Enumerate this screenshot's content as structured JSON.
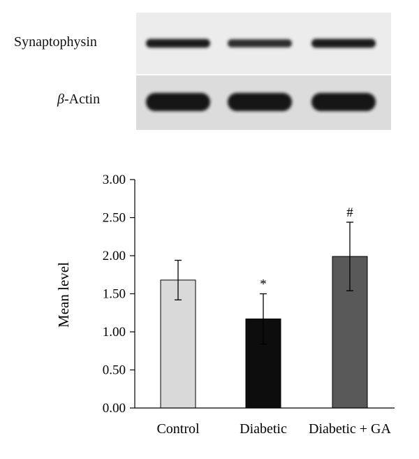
{
  "blot": {
    "rows": [
      {
        "label_main": "Synaptophysin",
        "label_italic": "",
        "band_intensity": [
          0.82,
          0.55,
          0.9
        ]
      },
      {
        "label_main": "-Actin",
        "label_italic": "β",
        "band_intensity": [
          1.0,
          1.0,
          1.0
        ]
      }
    ]
  },
  "chart_data": {
    "type": "bar",
    "categories": [
      "Control",
      "Diabetic",
      "Diabetic + GA"
    ],
    "values": [
      1.68,
      1.17,
      1.99
    ],
    "errors": [
      0.26,
      0.33,
      0.45
    ],
    "annotations": [
      "",
      "*",
      "#"
    ],
    "colors": [
      "#d9d9d9",
      "#0d0d0d",
      "#595959"
    ],
    "ylabel": "Mean level",
    "xlabel": "",
    "ylim": [
      0,
      3
    ],
    "yticks": [
      "0.00",
      "0.50",
      "1.00",
      "1.50",
      "2.00",
      "2.50",
      "3.00"
    ],
    "grid": false
  }
}
